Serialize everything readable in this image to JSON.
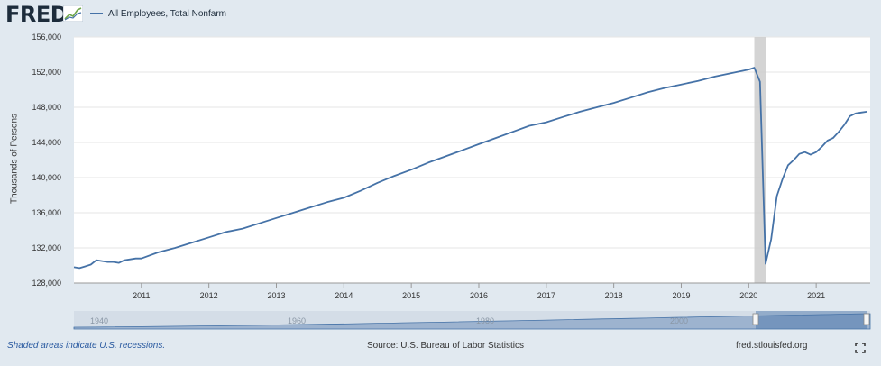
{
  "brand": {
    "logo_text": "FRED"
  },
  "legend": {
    "series_label": "All Employees, Total Nonfarm"
  },
  "footer": {
    "recession_note": "Shaded areas indicate U.S. recessions.",
    "source": "Source: U.S. Bureau of Labor Statistics",
    "site": "fred.stlouisfed.org"
  },
  "icons": {
    "fullscreen": "fullscreen-icon",
    "logo_chart": "line-chart-icon"
  },
  "colors": {
    "series": "#4572a7",
    "plot_bg": "#ffffff",
    "page_bg": "#e1e9f0",
    "recession": "#cccccc",
    "navigator_fill": "#9db3cf"
  },
  "navigator": {
    "labels": [
      "1940",
      "1960",
      "1980",
      "2000"
    ]
  },
  "chart_data": {
    "type": "line",
    "title": "",
    "xlabel": "",
    "ylabel": "Thousands of Persons",
    "xlim": [
      2010.0,
      2021.8
    ],
    "ylim": [
      128000,
      156000
    ],
    "yticks": [
      128000,
      132000,
      136000,
      140000,
      144000,
      148000,
      152000,
      156000
    ],
    "ytick_labels": [
      "128,000",
      "132,000",
      "136,000",
      "140,000",
      "144,000",
      "148,000",
      "152,000",
      "156,000"
    ],
    "xticks": [
      2011,
      2012,
      2013,
      2014,
      2015,
      2016,
      2017,
      2018,
      2019,
      2020,
      2021
    ],
    "xtick_labels": [
      "2011",
      "2012",
      "2013",
      "2014",
      "2015",
      "2016",
      "2017",
      "2018",
      "2019",
      "2020",
      "2021"
    ],
    "grid": true,
    "legend_position": "top-left",
    "recessions": [
      [
        2020.083,
        2020.25
      ]
    ],
    "series": [
      {
        "name": "All Employees, Total Nonfarm",
        "x": [
          2010.0,
          2010.083,
          2010.167,
          2010.25,
          2010.333,
          2010.417,
          2010.5,
          2010.583,
          2010.667,
          2010.75,
          2010.833,
          2010.917,
          2011.0,
          2011.25,
          2011.5,
          2011.75,
          2012.0,
          2012.25,
          2012.5,
          2012.75,
          2013.0,
          2013.25,
          2013.5,
          2013.75,
          2014.0,
          2014.25,
          2014.5,
          2014.75,
          2015.0,
          2015.25,
          2015.5,
          2015.75,
          2016.0,
          2016.25,
          2016.5,
          2016.75,
          2017.0,
          2017.25,
          2017.5,
          2017.75,
          2018.0,
          2018.25,
          2018.5,
          2018.75,
          2019.0,
          2019.25,
          2019.5,
          2019.75,
          2020.0,
          2020.083,
          2020.167,
          2020.25,
          2020.333,
          2020.417,
          2020.5,
          2020.583,
          2020.667,
          2020.75,
          2020.833,
          2020.917,
          2021.0,
          2021.083,
          2021.167,
          2021.25,
          2021.333,
          2021.417,
          2021.5,
          2021.583,
          2021.667,
          2021.75
        ],
        "y": [
          129800,
          129700,
          129900,
          130100,
          130600,
          130500,
          130400,
          130400,
          130300,
          130600,
          130700,
          130800,
          130800,
          131500,
          132000,
          132600,
          133200,
          133800,
          134200,
          134800,
          135400,
          136000,
          136600,
          137200,
          137700,
          138500,
          139400,
          140200,
          140900,
          141700,
          142400,
          143100,
          143800,
          144500,
          145200,
          145900,
          146300,
          146900,
          147500,
          148000,
          148500,
          149100,
          149700,
          150200,
          150600,
          151000,
          151500,
          151900,
          152300,
          152500,
          150900,
          130200,
          133000,
          137900,
          139800,
          141400,
          142000,
          142700,
          142900,
          142600,
          142900,
          143500,
          144200,
          144500,
          145200,
          146000,
          147000,
          147300,
          147400,
          147500
        ]
      }
    ]
  }
}
